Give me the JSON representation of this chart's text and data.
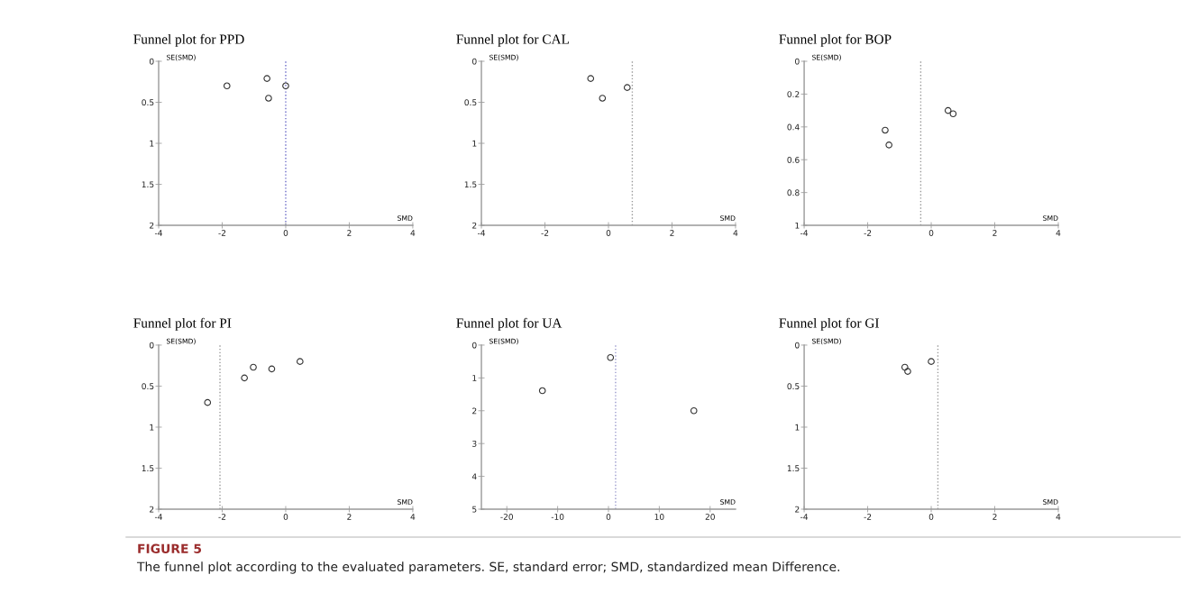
{
  "chart_data": [
    {
      "type": "scatter",
      "title": "Funnel plot for PPD",
      "xlabel": "SMD",
      "ylabel": "SE(SMD)",
      "marker": "circle",
      "x": [
        -1.85,
        -0.59,
        -0.54,
        0.0
      ],
      "values": [
        0.3,
        0.21,
        0.45,
        0.3
      ],
      "color": "#333333",
      "xlim": [
        -4,
        4
      ],
      "xticks": [
        -4,
        -2,
        0,
        2,
        4
      ],
      "ylim": [
        2,
        0
      ],
      "yticks": [
        0,
        0.5,
        1,
        1.5,
        2
      ],
      "ref_lines": [
        {
          "axis": "x",
          "value": 0.0,
          "color": "#6a6ac8",
          "line_style": "dotted"
        }
      ],
      "annotations": [
        "FIGURE 5",
        "The funnel plot according to the evaluated parameters. SE, standard error; SMD, standardized mean Difference."
      ]
    },
    {
      "type": "scatter",
      "title": "Funnel plot for CAL",
      "xlabel": "SMD",
      "ylabel": "SE(SMD)",
      "marker": "circle",
      "x": [
        -0.56,
        -0.19,
        0.59
      ],
      "values": [
        0.21,
        0.45,
        0.32
      ],
      "color": "#333333",
      "xlim": [
        -4,
        4
      ],
      "xticks": [
        -4,
        -2,
        0,
        2,
        4
      ],
      "ylim": [
        2,
        0
      ],
      "yticks": [
        0,
        0.5,
        1,
        1.5,
        2
      ],
      "ref_lines": [
        {
          "axis": "x",
          "value": 0.75,
          "color": "#999999",
          "line_style": "dotted"
        }
      ]
    },
    {
      "type": "scatter",
      "title": "Funnel plot for BOP",
      "xlabel": "SMD",
      "ylabel": "SE(SMD)",
      "marker": "circle",
      "x": [
        -1.45,
        -1.33,
        0.53,
        0.69
      ],
      "values": [
        0.42,
        0.51,
        0.3,
        0.32
      ],
      "color": "#333333",
      "xlim": [
        -4,
        4
      ],
      "xticks": [
        -4,
        -2,
        0,
        2,
        4
      ],
      "ylim": [
        1,
        0
      ],
      "yticks": [
        0,
        0.2,
        0.4,
        0.6,
        0.8,
        1
      ],
      "ref_lines": [
        {
          "axis": "x",
          "value": -0.33,
          "color": "#999999",
          "line_style": "dotted"
        }
      ]
    },
    {
      "type": "scatter",
      "title": "Funnel plot for PI",
      "xlabel": "SMD",
      "ylabel": "SE(SMD)",
      "marker": "circle",
      "x": [
        -2.46,
        -1.3,
        -1.02,
        -0.44,
        0.45
      ],
      "values": [
        0.7,
        0.4,
        0.27,
        0.29,
        0.2
      ],
      "color": "#333333",
      "xlim": [
        -4,
        4
      ],
      "xticks": [
        -4,
        -2,
        0,
        2,
        4
      ],
      "ylim": [
        2,
        0
      ],
      "yticks": [
        0,
        0.5,
        1,
        1.5,
        2
      ],
      "ref_lines": [
        {
          "axis": "x",
          "value": -2.07,
          "color": "#999999",
          "line_style": "dotted"
        }
      ]
    },
    {
      "type": "scatter",
      "title": "Funnel plot for UA",
      "xlabel": "SMD",
      "ylabel": "SE(SMD)",
      "marker": "circle",
      "x": [
        -13.0,
        0.4,
        16.8
      ],
      "values": [
        1.39,
        0.38,
        2.0
      ],
      "color": "#333333",
      "xlim": [
        -25,
        25
      ],
      "xticks": [
        -20,
        -10,
        0,
        10,
        20
      ],
      "ylim": [
        5,
        0
      ],
      "yticks": [
        0,
        1,
        2,
        3,
        4,
        5
      ],
      "ref_lines": [
        {
          "axis": "x",
          "value": 1.4,
          "color": "#9999cc",
          "line_style": "dotted"
        }
      ]
    },
    {
      "type": "scatter",
      "title": "Funnel plot for GI",
      "xlabel": "SMD",
      "ylabel": "SE(SMD)",
      "marker": "circle",
      "x": [
        -0.83,
        -0.74,
        0.0
      ],
      "values": [
        0.27,
        0.32,
        0.2
      ],
      "color": "#333333",
      "xlim": [
        -4,
        4
      ],
      "xticks": [
        -4,
        -2,
        0,
        2,
        4
      ],
      "ylim": [
        2,
        0
      ],
      "yticks": [
        0,
        0.5,
        1,
        1.5,
        2
      ],
      "ref_lines": [
        {
          "axis": "x",
          "value": 0.21,
          "color": "#999999",
          "line_style": "dotted"
        }
      ]
    }
  ]
}
